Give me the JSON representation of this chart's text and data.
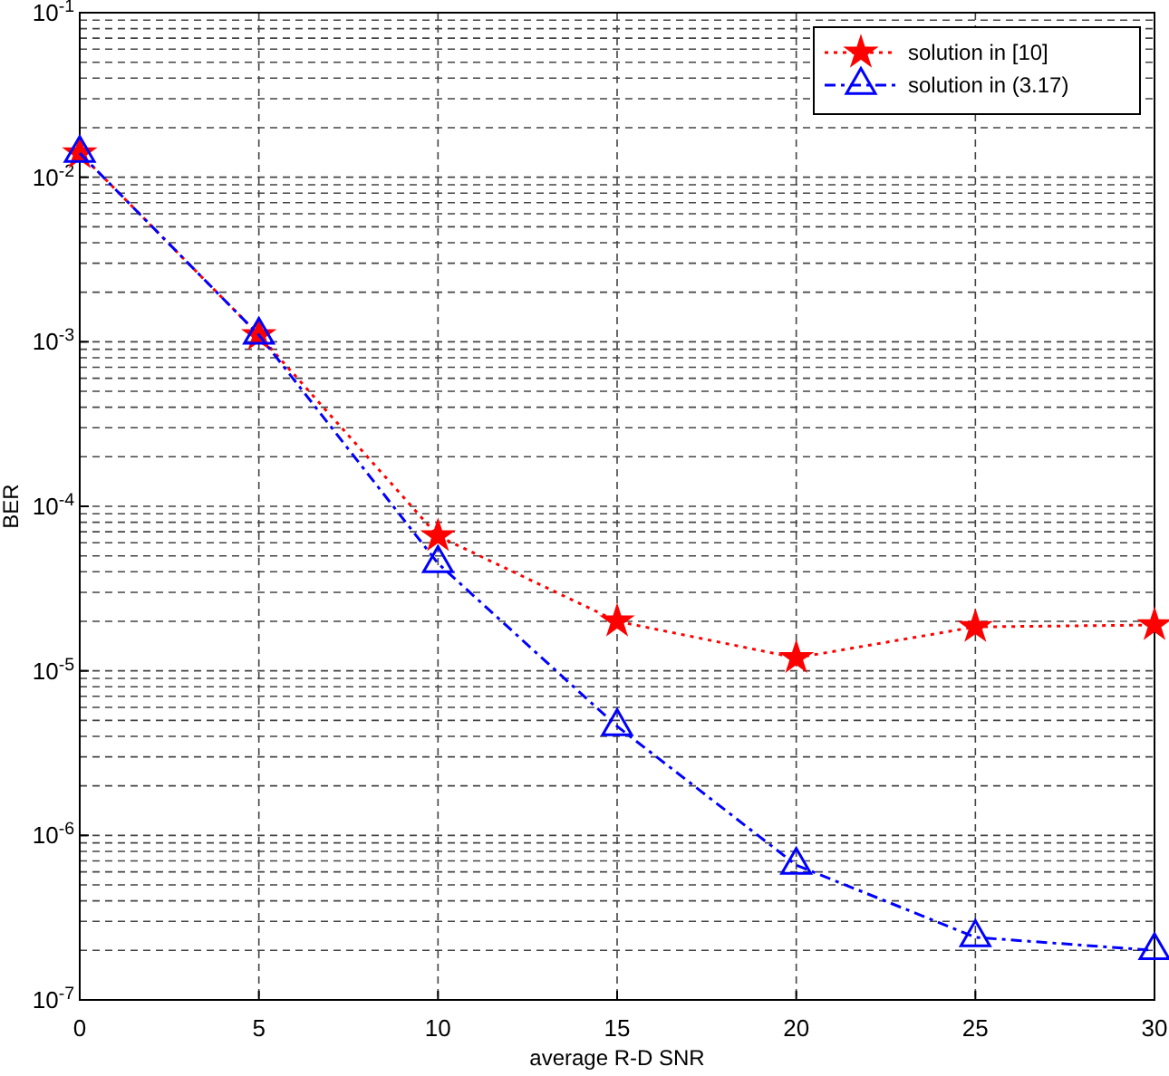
{
  "chart_data": {
    "type": "line",
    "xlabel": "average R-D SNR",
    "ylabel": "BER",
    "x": [
      0,
      5,
      10,
      15,
      20,
      25,
      30
    ],
    "series": [
      {
        "name": "solution in [10]",
        "color": "#ff0000",
        "values": [
          0.014,
          0.0011,
          6.6e-05,
          2e-05,
          1.2e-05,
          1.85e-05,
          1.9e-05
        ],
        "marker": "star",
        "line_style": "dotted"
      },
      {
        "name": "solution in (3.17)",
        "color": "#0000ff",
        "values": [
          0.014,
          0.0011,
          4.5e-05,
          4.6e-06,
          6.6e-07,
          2.4e-07,
          2e-07
        ],
        "marker": "triangle",
        "line_style": "dashdot"
      }
    ],
    "log": "y",
    "xlim": [
      0,
      30
    ],
    "xticks": [
      0,
      5,
      10,
      15,
      20,
      25,
      30
    ],
    "ylim": [
      1e-07,
      0.1
    ],
    "yticks": [
      {
        "value": 1e-07,
        "label": "10$^{-7}$"
      },
      {
        "value": 1e-06,
        "label": "10$^{-6}$"
      },
      {
        "value": 1e-05,
        "label": "10$^{-5}$"
      },
      {
        "value": 0.0001,
        "label": "10$^{-4}$"
      },
      {
        "value": 0.001,
        "label": "10$^{-3}$"
      },
      {
        "value": 0.01,
        "label": "10$^{-2}$"
      },
      {
        "value": 0.1,
        "label": "10$^{-1}$"
      }
    ],
    "grid": true,
    "legend": "top right"
  }
}
